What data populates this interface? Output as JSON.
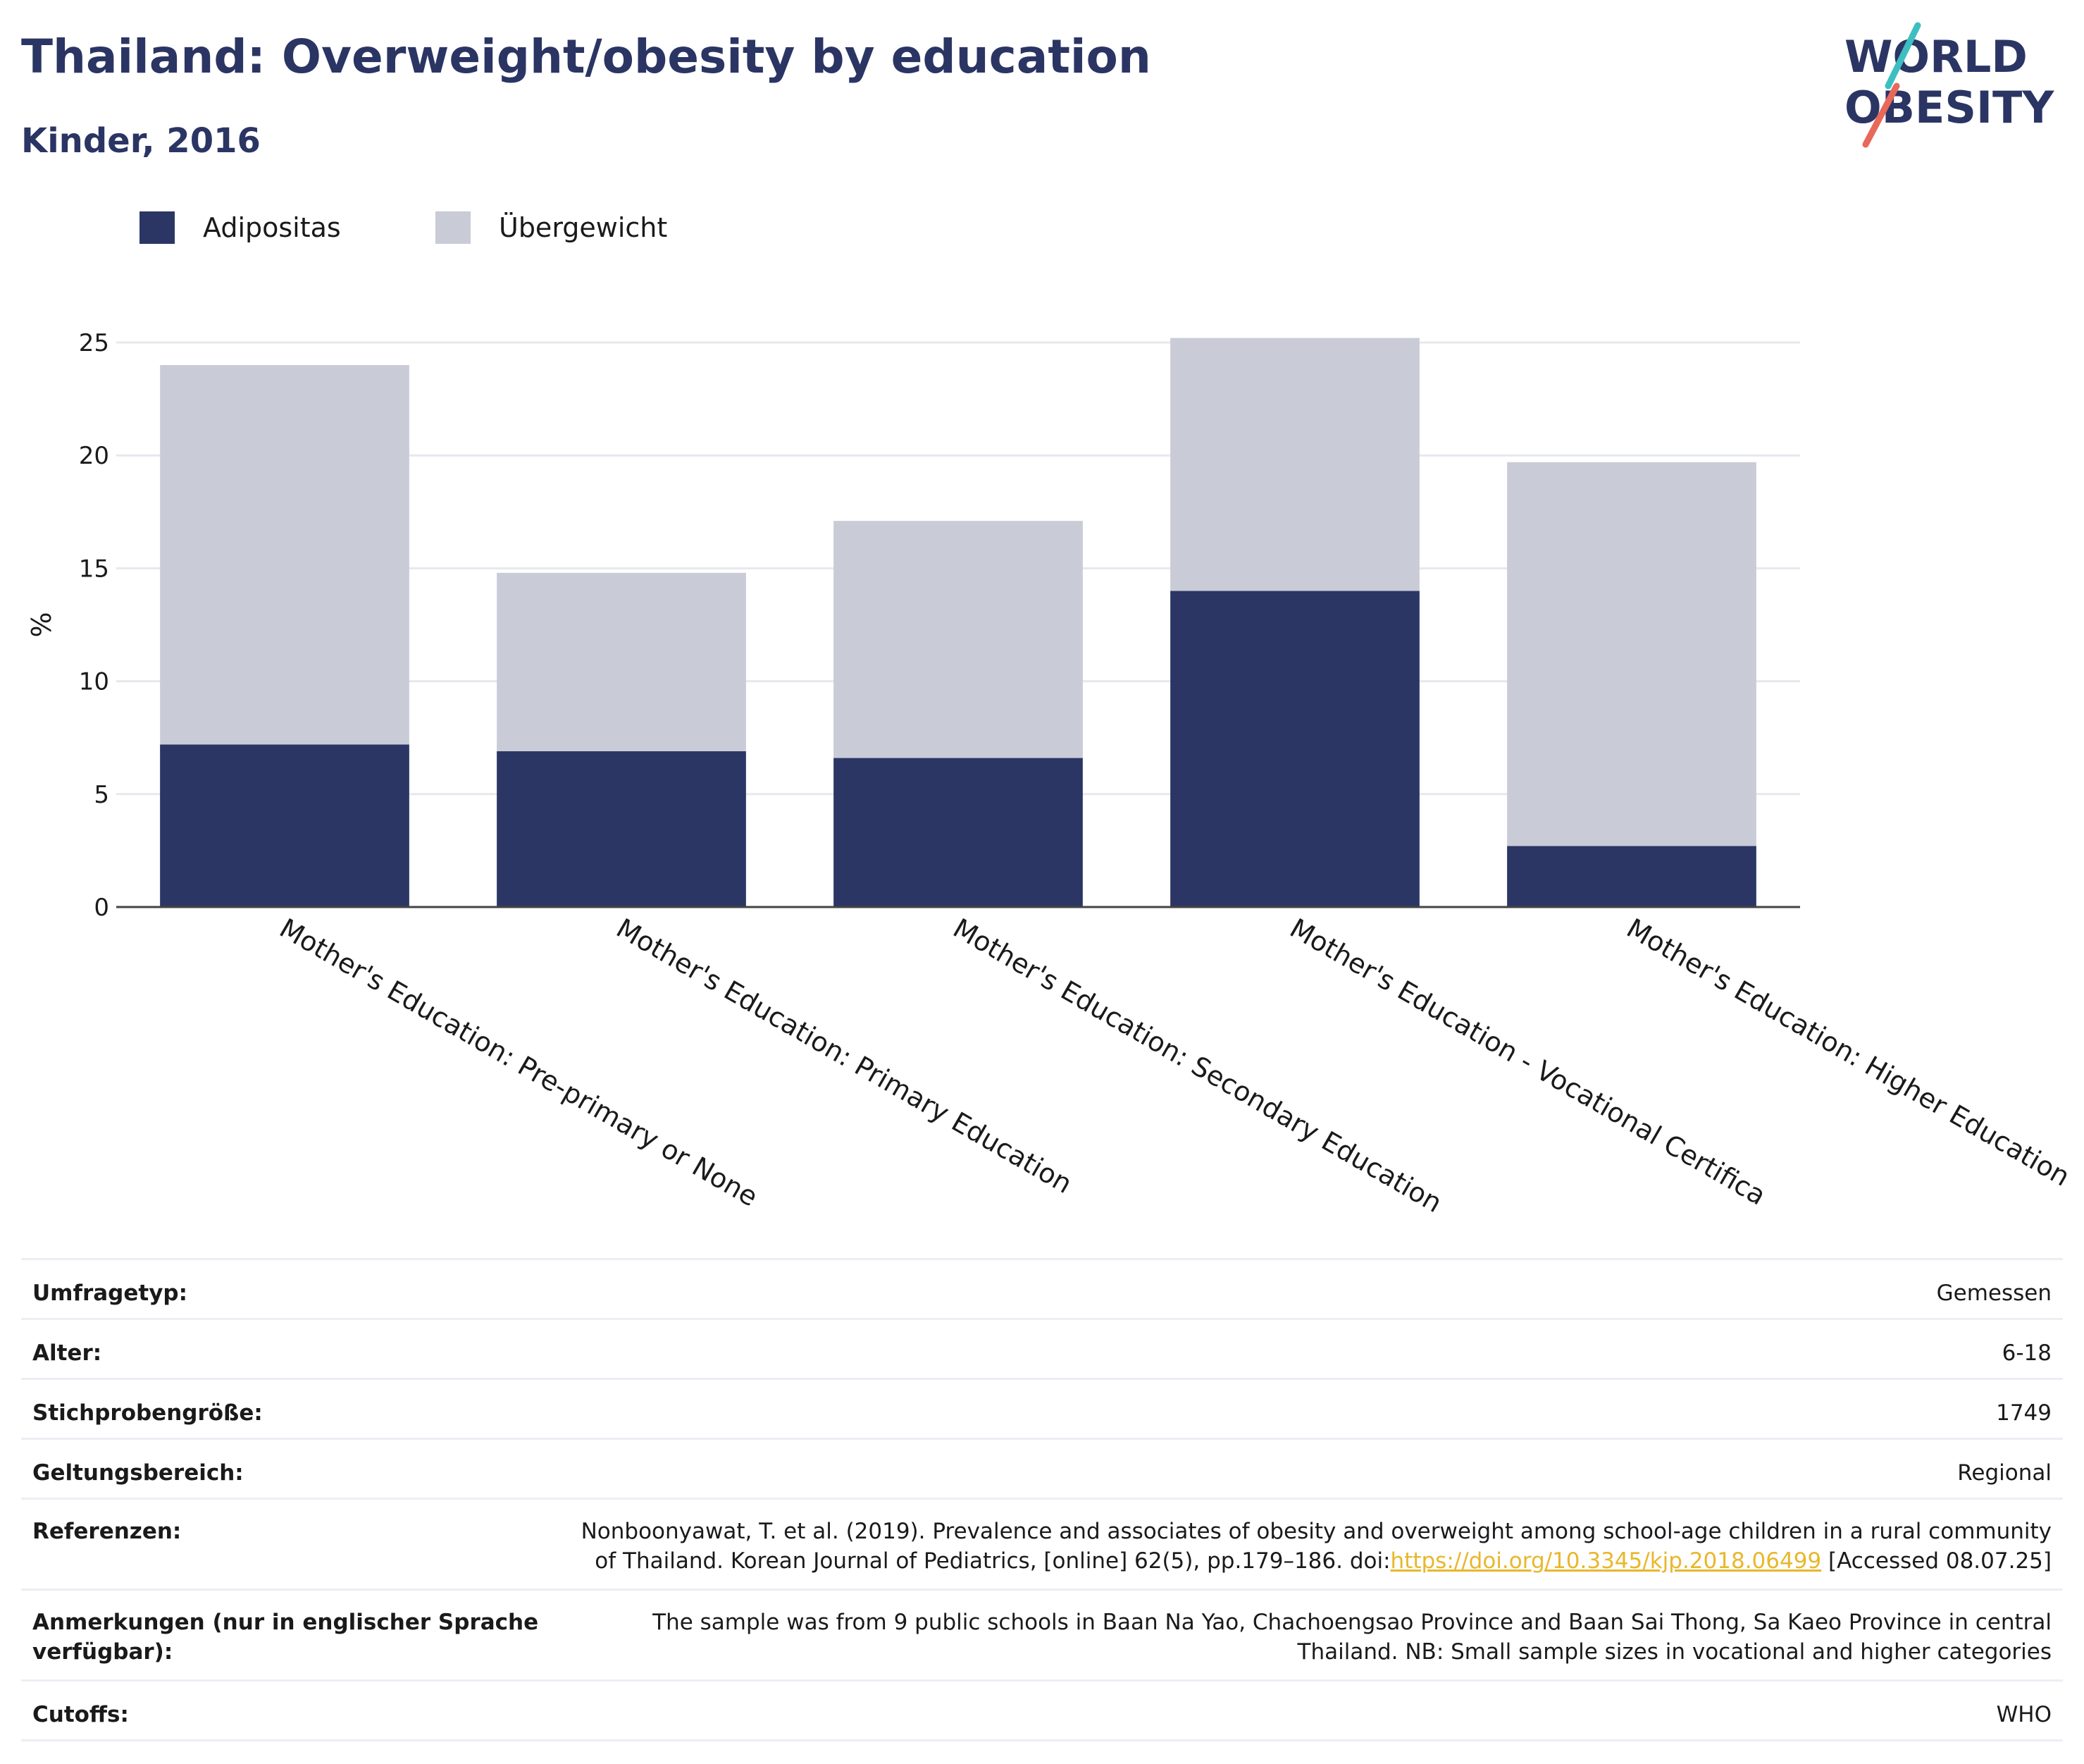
{
  "header": {
    "title": "Thailand: Overweight/obesity by education",
    "subtitle": "Kinder, 2016"
  },
  "logo": {
    "line1": "WORLD",
    "line2": "OBESITY"
  },
  "colors": {
    "obesity": "#2b3664",
    "overweight": "#c9cbd7",
    "title": "#2b3564",
    "link": "#e8b72c"
  },
  "chart_data": {
    "type": "bar",
    "stacked": true,
    "categories": [
      "Mother's Education: Pre-primary or None",
      "Mother's Education: Primary Education",
      "Mother's Education: Secondary Education",
      "Mother's Education - Vocational Certifica",
      "Mother's Education: Higher Education"
    ],
    "series": [
      {
        "name": "Adipositas",
        "color": "#2b3664",
        "values": [
          7.2,
          6.9,
          6.6,
          14.0,
          2.7
        ]
      },
      {
        "name": "Übergewicht",
        "color": "#c9cbd7",
        "values": [
          16.8,
          7.9,
          10.5,
          11.2,
          17.0
        ]
      }
    ],
    "ylabel": "%",
    "ylim": [
      0,
      25
    ],
    "yticks": [
      0,
      5,
      10,
      15,
      20,
      25
    ],
    "grid": true,
    "legend": "top-left"
  },
  "meta": [
    {
      "key": "Umfragetyp:",
      "value": "Gemessen"
    },
    {
      "key": "Alter:",
      "value": "6-18"
    },
    {
      "key": "Stichprobengröße:",
      "value": "1749"
    },
    {
      "key": "Geltungsbereich:",
      "value": "Regional"
    }
  ],
  "references": {
    "key": "Referenzen:",
    "text_before": "Nonboonyawat, T. et al. (2019). Prevalence and associates of obesity and overweight among school-age children in a rural community of Thailand. Korean Journal of Pediatrics, [online] 62(5), pp.179–186. doi:",
    "link": "https://doi.org/10.3345/kjp.2018.06499",
    "text_after": " [Accessed 08.07.25]"
  },
  "notes": {
    "key": "Anmerkungen (nur in englischer Sprache verfügbar):",
    "value": "The sample was from 9 public schools in Baan Na Yao, Chachoengsao Province and Baan Sai Thong, Sa Kaeo Province in central Thailand. NB: Small sample sizes in vocational and higher categories"
  },
  "cutoffs": {
    "key": "Cutoffs:",
    "value": "WHO"
  }
}
